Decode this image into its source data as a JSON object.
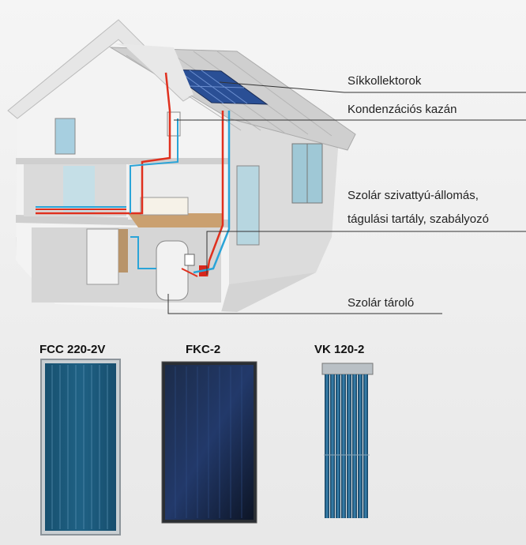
{
  "callouts": {
    "sikkollektorok": "Síkkollektorok",
    "kondenzacios_kazan": "Kondenzációs kazán",
    "szolar_allomas_line1": "Szolár szivattyú-állomás,",
    "szolar_allomas_line2": "tágulási tartály, szabályozó",
    "szolar_tarolo": "Szolár tároló"
  },
  "models": [
    {
      "label": "FCC 220-2V"
    },
    {
      "label": "FKC-2"
    },
    {
      "label": "VK 120-2"
    }
  ],
  "colors": {
    "background": "#eeeeee",
    "hot_pipe": "#e0301e",
    "cold_pipe": "#2aa4d8",
    "panel_blue": "#1d5d86",
    "tube_blue": "#1f5b80"
  }
}
